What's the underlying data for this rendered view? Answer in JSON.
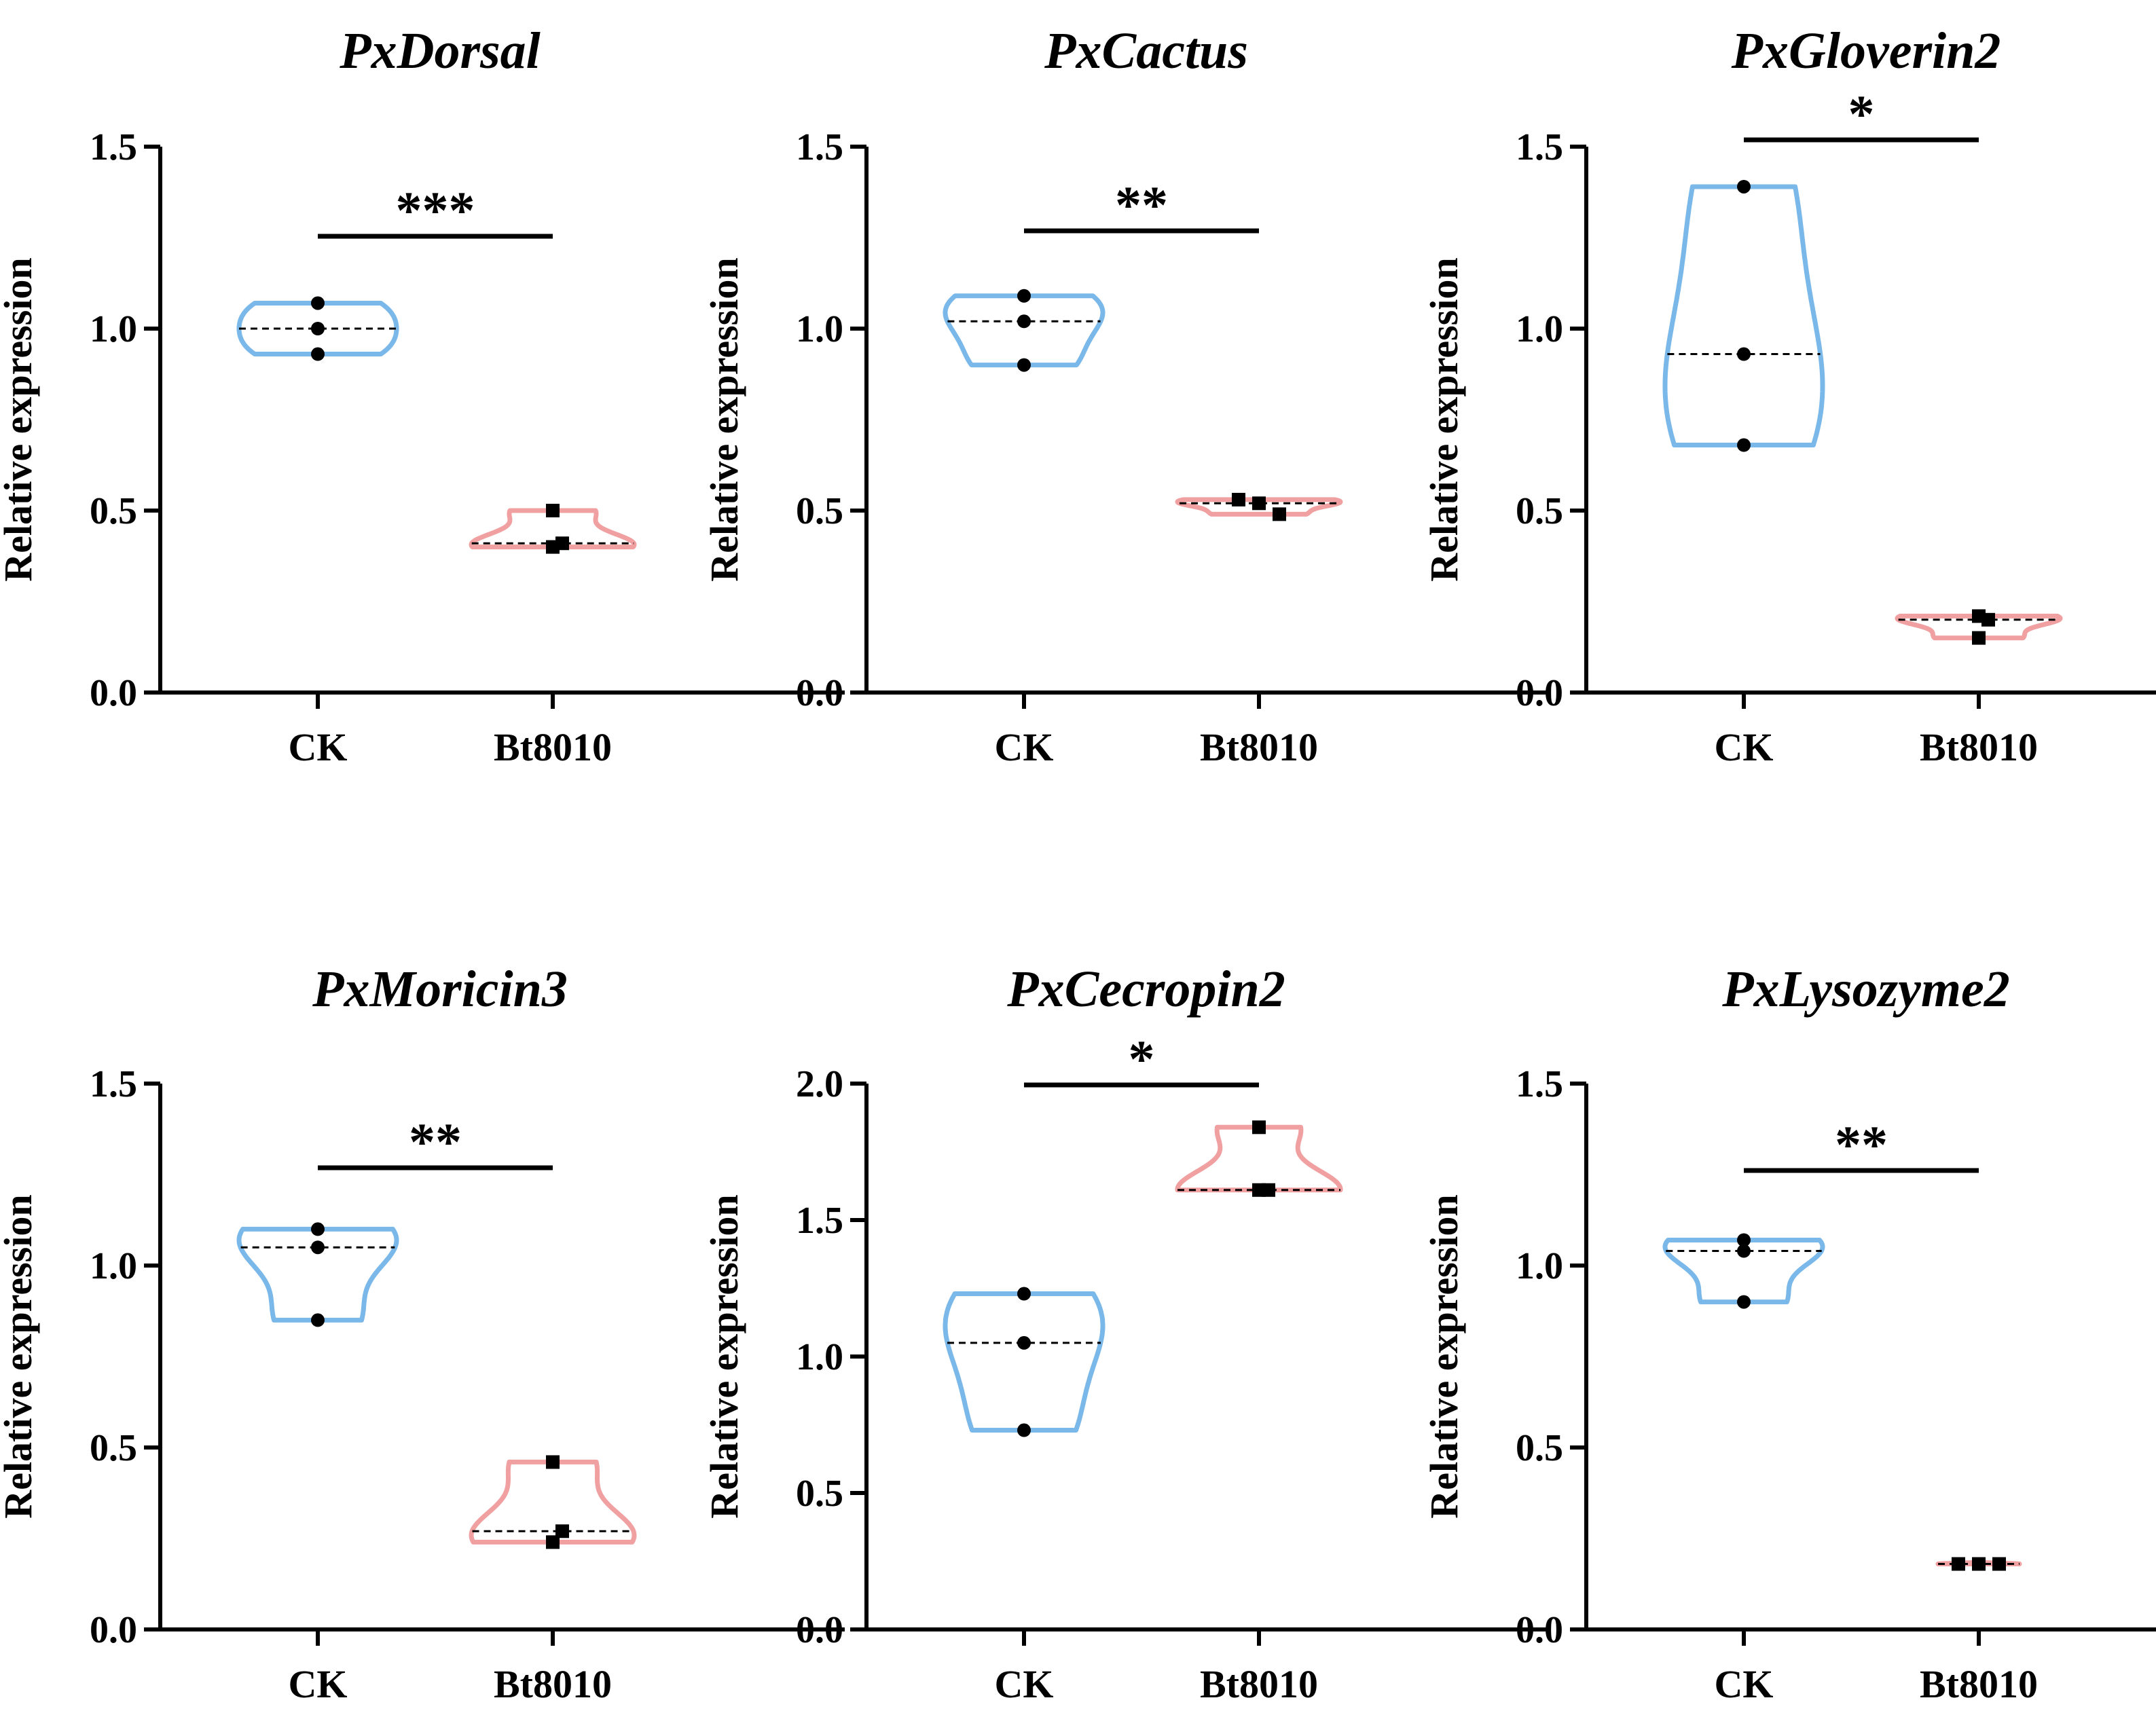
{
  "colors": {
    "ck": "#7ab8ea",
    "bt8010": "#f0a0a0",
    "axis": "#000000",
    "median_line": "#000000",
    "point": "#000000"
  },
  "chart_data": [
    {
      "type": "violin",
      "title": "PxDorsal",
      "ylabel": "Relative expression",
      "ylim": [
        0,
        1.5
      ],
      "yticks": [
        "0.0",
        "0.5",
        "1.0",
        "1.5"
      ],
      "categories": [
        "CK",
        "Bt8010"
      ],
      "series": [
        {
          "name": "CK",
          "values": [
            1.07,
            1.0,
            0.93
          ],
          "median": 1.0
        },
        {
          "name": "Bt8010",
          "values": [
            0.5,
            0.41,
            0.4
          ],
          "median": 0.41
        }
      ],
      "significance": "***"
    },
    {
      "type": "violin",
      "title": "PxCactus",
      "ylabel": "Relative expression",
      "ylim": [
        0,
        1.5
      ],
      "yticks": [
        "0.0",
        "0.5",
        "1.0",
        "1.5"
      ],
      "categories": [
        "CK",
        "Bt8010"
      ],
      "series": [
        {
          "name": "CK",
          "values": [
            1.09,
            1.02,
            0.9
          ],
          "median": 1.02
        },
        {
          "name": "Bt8010",
          "values": [
            0.53,
            0.52,
            0.49
          ],
          "median": 0.52
        }
      ],
      "significance": "**"
    },
    {
      "type": "violin",
      "title": "PxGloverin2",
      "ylabel": "Relative expression",
      "ylim": [
        0,
        1.5
      ],
      "yticks": [
        "0.0",
        "0.5",
        "1.0",
        "1.5"
      ],
      "categories": [
        "CK",
        "Bt8010"
      ],
      "series": [
        {
          "name": "CK",
          "values": [
            1.39,
            0.93,
            0.68
          ],
          "median": 0.93
        },
        {
          "name": "Bt8010",
          "values": [
            0.21,
            0.2,
            0.15
          ],
          "median": 0.2
        }
      ],
      "significance": "*"
    },
    {
      "type": "violin",
      "title": "PxMoricin3",
      "ylabel": "Relative expression",
      "ylim": [
        0,
        1.5
      ],
      "yticks": [
        "0.0",
        "0.5",
        "1.0",
        "1.5"
      ],
      "categories": [
        "CK",
        "Bt8010"
      ],
      "series": [
        {
          "name": "CK",
          "values": [
            1.1,
            1.05,
            0.85
          ],
          "median": 1.05
        },
        {
          "name": "Bt8010",
          "values": [
            0.46,
            0.27,
            0.24
          ],
          "median": 0.27
        }
      ],
      "significance": "**"
    },
    {
      "type": "violin",
      "title": "PxCecropin2",
      "ylabel": "Relative expression",
      "ylim": [
        0,
        2.0
      ],
      "yticks": [
        "0.0",
        "0.5",
        "1.0",
        "1.5",
        "2.0"
      ],
      "categories": [
        "CK",
        "Bt8010"
      ],
      "series": [
        {
          "name": "CK",
          "values": [
            1.23,
            1.05,
            0.73
          ],
          "median": 1.05
        },
        {
          "name": "Bt8010",
          "values": [
            1.84,
            1.61,
            1.61
          ],
          "median": 1.61
        }
      ],
      "significance": "*"
    },
    {
      "type": "violin",
      "title": "PxLysozyme2",
      "ylabel": "Relative expression",
      "ylim": [
        0,
        1.5
      ],
      "yticks": [
        "0.0",
        "0.5",
        "1.0",
        "1.5"
      ],
      "categories": [
        "CK",
        "Bt8010"
      ],
      "series": [
        {
          "name": "CK",
          "values": [
            1.07,
            1.04,
            0.9
          ],
          "median": 1.04
        },
        {
          "name": "Bt8010",
          "values": [
            0.18,
            0.18,
            0.18
          ],
          "median": 0.18
        }
      ],
      "significance": "**"
    }
  ]
}
